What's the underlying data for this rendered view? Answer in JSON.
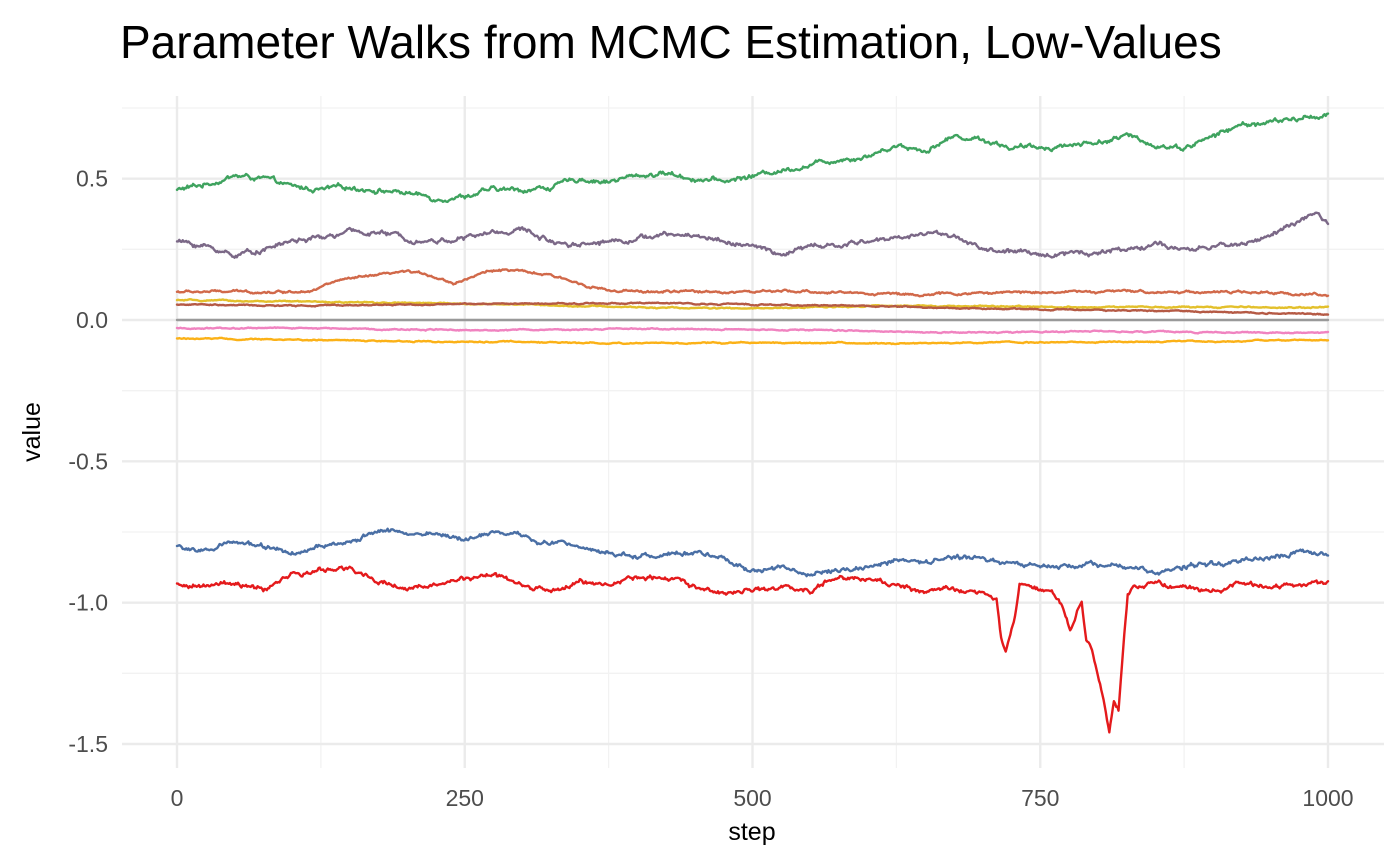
{
  "chart_data": {
    "type": "line",
    "title": "Parameter Walks from MCMC Estimation, Low-Values",
    "xlabel": "step",
    "ylabel": "value",
    "xlim": [
      -40,
      1045
    ],
    "ylim": [
      -1.57,
      0.8
    ],
    "x_ticks": [
      0,
      250,
      500,
      750,
      1000
    ],
    "x_tick_labels": [
      "0",
      "250",
      "500",
      "750",
      "1000"
    ],
    "x_minor_ticks": [
      125,
      375,
      625,
      875
    ],
    "y_ticks": [
      0.5,
      0.0,
      -0.5,
      -1.0,
      -1.5
    ],
    "y_tick_labels": [
      "0.5",
      "0.0",
      "-0.5",
      "-1.0",
      "-1.5"
    ],
    "y_minor_ticks": [
      0.75,
      0.25,
      -0.25,
      -0.75,
      -1.25
    ],
    "grid": true,
    "legend": "none",
    "n_steps": 1000,
    "series": [
      {
        "name": "green",
        "color": "#3fa35f",
        "noise": 0.006,
        "x": [
          0,
          25,
          50,
          75,
          100,
          125,
          150,
          175,
          200,
          225,
          250,
          275,
          300,
          325,
          350,
          375,
          400,
          425,
          450,
          475,
          500,
          525,
          550,
          575,
          600,
          625,
          650,
          675,
          700,
          725,
          750,
          775,
          800,
          825,
          850,
          875,
          900,
          925,
          950,
          975,
          1000
        ],
        "y": [
          0.46,
          0.48,
          0.51,
          0.5,
          0.47,
          0.46,
          0.47,
          0.46,
          0.45,
          0.43,
          0.44,
          0.46,
          0.46,
          0.47,
          0.5,
          0.49,
          0.51,
          0.52,
          0.5,
          0.49,
          0.51,
          0.53,
          0.55,
          0.57,
          0.58,
          0.62,
          0.6,
          0.65,
          0.64,
          0.61,
          0.61,
          0.62,
          0.63,
          0.65,
          0.62,
          0.61,
          0.65,
          0.69,
          0.7,
          0.71,
          0.73
        ]
      },
      {
        "name": "purple",
        "color": "#7b6887",
        "noise": 0.006,
        "x": [
          0,
          25,
          50,
          75,
          100,
          125,
          150,
          175,
          200,
          225,
          250,
          275,
          300,
          325,
          350,
          375,
          400,
          425,
          450,
          475,
          500,
          525,
          550,
          575,
          600,
          625,
          650,
          675,
          700,
          725,
          750,
          775,
          800,
          825,
          850,
          875,
          900,
          925,
          950,
          975,
          990,
          1000
        ],
        "y": [
          0.28,
          0.26,
          0.23,
          0.25,
          0.28,
          0.29,
          0.31,
          0.31,
          0.29,
          0.28,
          0.29,
          0.31,
          0.32,
          0.28,
          0.27,
          0.28,
          0.29,
          0.3,
          0.3,
          0.28,
          0.26,
          0.23,
          0.26,
          0.26,
          0.28,
          0.29,
          0.31,
          0.3,
          0.25,
          0.24,
          0.23,
          0.24,
          0.24,
          0.25,
          0.27,
          0.24,
          0.26,
          0.27,
          0.3,
          0.35,
          0.37,
          0.34
        ]
      },
      {
        "name": "coral",
        "color": "#d1694a",
        "noise": 0.003,
        "x": [
          0,
          50,
          100,
          120,
          140,
          160,
          180,
          200,
          220,
          240,
          260,
          280,
          300,
          320,
          340,
          360,
          380,
          450,
          500,
          550,
          650,
          750,
          800,
          900,
          1000
        ],
        "y": [
          0.1,
          0.1,
          0.1,
          0.11,
          0.14,
          0.15,
          0.16,
          0.17,
          0.16,
          0.13,
          0.16,
          0.18,
          0.17,
          0.16,
          0.14,
          0.12,
          0.1,
          0.1,
          0.1,
          0.1,
          0.09,
          0.1,
          0.1,
          0.1,
          0.09
        ]
      },
      {
        "name": "gold",
        "color": "#e3c02c",
        "noise": 0.0015,
        "x": [
          0,
          100,
          200,
          300,
          400,
          500,
          600,
          700,
          800,
          900,
          1000
        ],
        "y": [
          0.07,
          0.065,
          0.06,
          0.055,
          0.045,
          0.04,
          0.05,
          0.048,
          0.046,
          0.045,
          0.045
        ]
      },
      {
        "name": "brown",
        "color": "#b55a45",
        "noise": 0.0015,
        "x": [
          0,
          100,
          200,
          300,
          400,
          500,
          600,
          700,
          800,
          900,
          1000
        ],
        "y": [
          0.055,
          0.05,
          0.055,
          0.057,
          0.06,
          0.055,
          0.05,
          0.04,
          0.035,
          0.03,
          0.02
        ]
      },
      {
        "name": "gray",
        "color": "#999999",
        "noise": 0.0,
        "x": [
          0,
          1000
        ],
        "y": [
          0.0,
          0.0
        ]
      },
      {
        "name": "pink",
        "color": "#f083c0",
        "noise": 0.0015,
        "x": [
          0,
          100,
          200,
          300,
          400,
          500,
          600,
          700,
          800,
          900,
          1000
        ],
        "y": [
          -0.03,
          -0.028,
          -0.033,
          -0.035,
          -0.032,
          -0.035,
          -0.038,
          -0.045,
          -0.04,
          -0.043,
          -0.045
        ]
      },
      {
        "name": "amber",
        "color": "#fbb117",
        "noise": 0.0015,
        "x": [
          0,
          100,
          200,
          300,
          400,
          500,
          600,
          700,
          800,
          900,
          1000
        ],
        "y": [
          -0.065,
          -0.07,
          -0.075,
          -0.078,
          -0.082,
          -0.08,
          -0.083,
          -0.08,
          -0.078,
          -0.075,
          -0.072
        ]
      },
      {
        "name": "blue",
        "color": "#4a6fa5",
        "noise": 0.006,
        "x": [
          0,
          25,
          50,
          75,
          100,
          125,
          150,
          175,
          200,
          225,
          250,
          275,
          300,
          325,
          350,
          375,
          400,
          425,
          450,
          475,
          500,
          525,
          550,
          575,
          600,
          625,
          650,
          675,
          700,
          725,
          750,
          775,
          800,
          825,
          850,
          875,
          900,
          925,
          950,
          975,
          1000
        ],
        "y": [
          -0.8,
          -0.82,
          -0.79,
          -0.8,
          -0.83,
          -0.8,
          -0.79,
          -0.74,
          -0.76,
          -0.76,
          -0.78,
          -0.74,
          -0.76,
          -0.79,
          -0.8,
          -0.82,
          -0.84,
          -0.82,
          -0.82,
          -0.85,
          -0.89,
          -0.88,
          -0.9,
          -0.88,
          -0.87,
          -0.85,
          -0.86,
          -0.84,
          -0.84,
          -0.86,
          -0.88,
          -0.87,
          -0.87,
          -0.88,
          -0.89,
          -0.87,
          -0.86,
          -0.85,
          -0.84,
          -0.82,
          -0.84
        ]
      },
      {
        "name": "red",
        "color": "#e41a1c",
        "noise": 0.006,
        "x": [
          0,
          25,
          50,
          75,
          100,
          125,
          150,
          175,
          200,
          225,
          250,
          275,
          300,
          325,
          350,
          375,
          400,
          425,
          450,
          475,
          500,
          525,
          550,
          575,
          600,
          625,
          650,
          675,
          700,
          712,
          716,
          720,
          724,
          728,
          732,
          740,
          760,
          770,
          776,
          780,
          786,
          790,
          794,
          798,
          804,
          810,
          814,
          818,
          822,
          826,
          830,
          850,
          875,
          900,
          925,
          950,
          975,
          1000
        ],
        "y": [
          -0.93,
          -0.94,
          -0.93,
          -0.96,
          -0.9,
          -0.89,
          -0.88,
          -0.92,
          -0.95,
          -0.94,
          -0.92,
          -0.9,
          -0.95,
          -0.96,
          -0.92,
          -0.94,
          -0.91,
          -0.92,
          -0.94,
          -0.97,
          -0.95,
          -0.94,
          -0.96,
          -0.9,
          -0.91,
          -0.94,
          -0.96,
          -0.95,
          -0.97,
          -0.99,
          -1.13,
          -1.18,
          -1.11,
          -1.05,
          -0.93,
          -0.95,
          -0.96,
          -1.02,
          -1.1,
          -1.06,
          -0.99,
          -1.13,
          -1.15,
          -1.22,
          -1.33,
          -1.47,
          -1.36,
          -1.38,
          -1.17,
          -0.98,
          -0.94,
          -0.93,
          -0.95,
          -0.96,
          -0.93,
          -0.95,
          -0.93,
          -0.93
        ]
      }
    ]
  }
}
